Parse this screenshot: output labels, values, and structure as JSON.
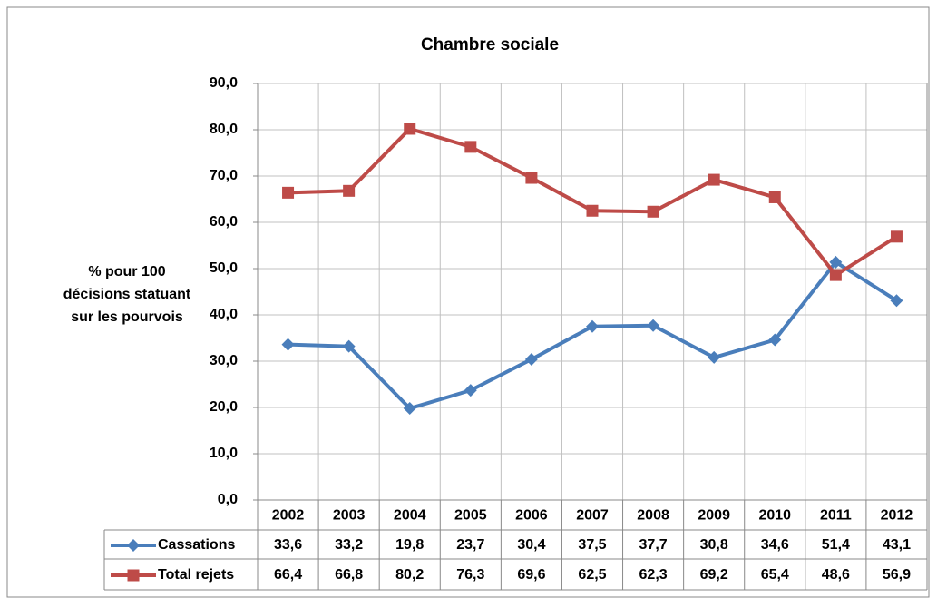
{
  "chart_data": {
    "type": "line",
    "title": "Chambre sociale",
    "y_label": [
      "% pour 100",
      "décisions statuant",
      "sur les pourvois"
    ],
    "categories": [
      "2002",
      "2003",
      "2004",
      "2005",
      "2006",
      "2007",
      "2008",
      "2009",
      "2010",
      "2011",
      "2012"
    ],
    "series": [
      {
        "name": "Cassations",
        "color": "#4a7ebb",
        "marker": "diamond",
        "values": [
          33.6,
          33.2,
          19.8,
          23.7,
          30.4,
          37.5,
          37.7,
          30.8,
          34.6,
          51.4,
          43.1
        ],
        "value_labels": [
          "33,6",
          "33,2",
          "19,8",
          "23,7",
          "30,4",
          "37,5",
          "37,7",
          "30,8",
          "34,6",
          "51,4",
          "43,1"
        ]
      },
      {
        "name": "Total rejets",
        "color": "#be4b48",
        "marker": "square",
        "values": [
          66.4,
          66.8,
          80.2,
          76.3,
          69.6,
          62.5,
          62.3,
          69.2,
          65.4,
          48.6,
          56.9
        ],
        "value_labels": [
          "66,4",
          "66,8",
          "80,2",
          "76,3",
          "69,6",
          "62,5",
          "62,3",
          "69,2",
          "65,4",
          "48,6",
          "56,9"
        ]
      }
    ],
    "ylim": [
      0,
      90
    ],
    "yticks": [
      {
        "value": 0,
        "label": "0,0"
      },
      {
        "value": 10,
        "label": "10,0"
      },
      {
        "value": 20,
        "label": "20,0"
      },
      {
        "value": 30,
        "label": "30,0"
      },
      {
        "value": 40,
        "label": "40,0"
      },
      {
        "value": 50,
        "label": "50,0"
      },
      {
        "value": 60,
        "label": "60,0"
      },
      {
        "value": 70,
        "label": "70,0"
      },
      {
        "value": 80,
        "label": "80,0"
      },
      {
        "value": 90,
        "label": "90,0"
      }
    ],
    "grid": true
  }
}
